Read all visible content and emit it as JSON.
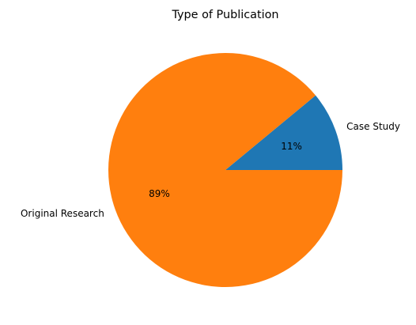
{
  "chart_data": {
    "type": "pie",
    "title": "Type of Publication",
    "labels": [
      "Case Study",
      "Original Research"
    ],
    "values": [
      11,
      89
    ],
    "pct_labels": [
      "11%",
      "89%"
    ],
    "colors": [
      "#1f77b4",
      "#ff7f0e"
    ],
    "start_angle_deg": 0,
    "direction": "counterclockwise"
  }
}
